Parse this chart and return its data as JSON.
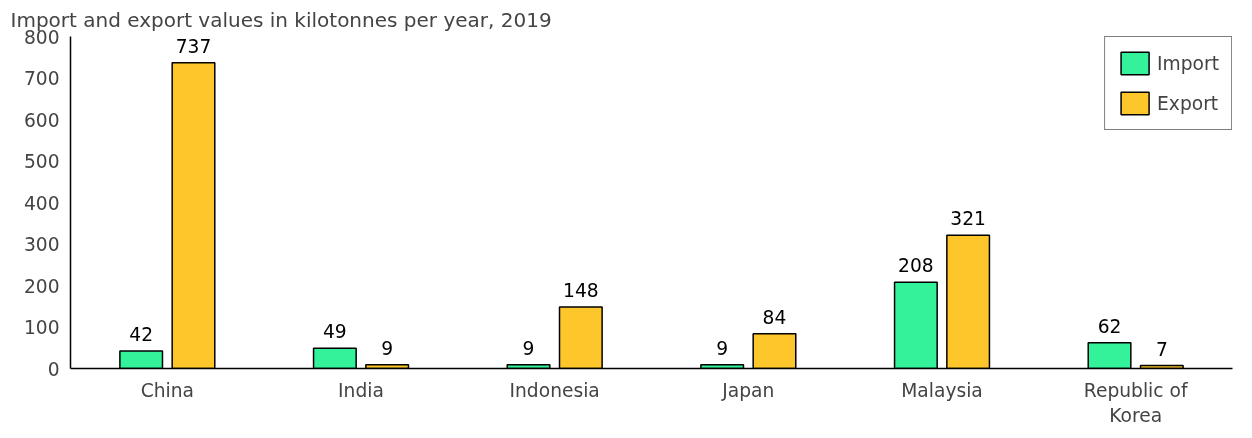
{
  "chart_data": {
    "type": "bar",
    "title": "Import and export values in kilotonnes per year, 2019",
    "categories": [
      "China",
      "India",
      "Indonesia",
      "Japan",
      "Malaysia",
      "Republic of Korea"
    ],
    "series": [
      {
        "name": "Import",
        "color": "#33f29a",
        "values": [
          42,
          49,
          9,
          9,
          208,
          62
        ]
      },
      {
        "name": "Export",
        "color": "#fdc62b",
        "values": [
          737,
          9,
          148,
          84,
          321,
          7
        ]
      }
    ],
    "ylim": [
      0,
      800
    ],
    "yticks": [
      0,
      100,
      200,
      300,
      400,
      500,
      600,
      700,
      800
    ],
    "data_labels": true,
    "legend": "top right",
    "grid": false
  }
}
